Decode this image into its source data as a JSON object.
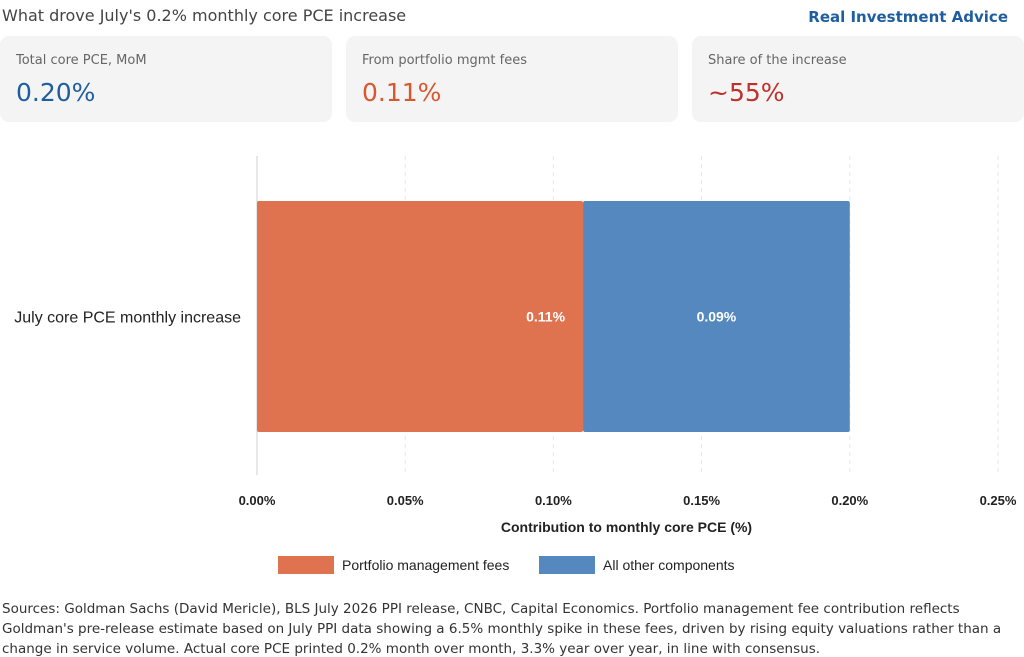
{
  "header": {
    "title": "What drove July's 0.2% monthly core PCE increase",
    "brand": "Real Investment Advice"
  },
  "cards": [
    {
      "label": "Total core PCE, MoM",
      "value": "0.20%",
      "color": "#1f5e9e"
    },
    {
      "label": "From portfolio mgmt fees",
      "value": "0.11%",
      "color": "#d9572f"
    },
    {
      "label": "Share of the increase",
      "value": "~55%",
      "color": "#c0302b"
    }
  ],
  "chart_data": {
    "type": "bar",
    "orientation": "horizontal",
    "stacked": true,
    "categories": [
      "July core PCE monthly increase"
    ],
    "series": [
      {
        "name": "Portfolio management fees",
        "values": [
          0.11
        ],
        "color": "#df7350",
        "label": "0.11%"
      },
      {
        "name": "All other components",
        "values": [
          0.09
        ],
        "color": "#5488bf",
        "label": "0.09%"
      }
    ],
    "xlabel": "Contribution to monthly core PCE (%)",
    "ylabel": "",
    "xlim": [
      0,
      0.25
    ],
    "xticks": [
      "0.00%",
      "0.05%",
      "0.10%",
      "0.15%",
      "0.20%",
      "0.25%"
    ],
    "grid": true,
    "legend_position": "bottom"
  },
  "sources": "Sources: Goldman Sachs (David Mericle), BLS July 2026 PPI release, CNBC, Capital Economics. Portfolio management fee contribution reflects Goldman's pre-release estimate based on July PPI data showing a 6.5% monthly spike in these fees, driven by rising equity valuations rather than a change in service volume. Actual core PCE printed 0.2% month over month, 3.3% year over year, in line with consensus."
}
